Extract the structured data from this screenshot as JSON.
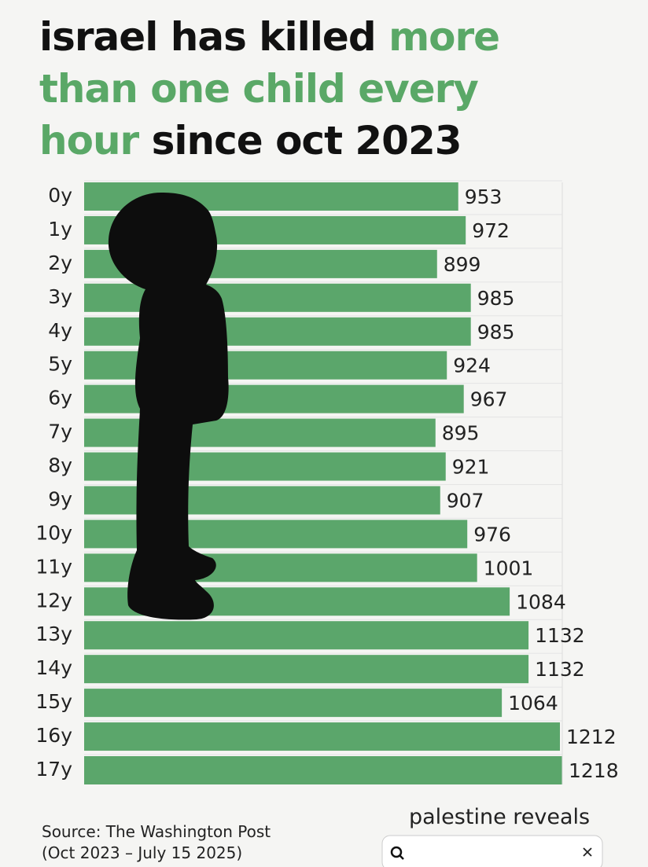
{
  "chart_data": {
    "type": "bar",
    "orientation": "horizontal",
    "title_parts": [
      "israel has killed",
      "more than one child every hour",
      "since oct 2023"
    ],
    "title_colors": [
      "#111111",
      "#5aa867",
      "#111111"
    ],
    "categories": [
      "0y",
      "1y",
      "2y",
      "3y",
      "4y",
      "5y",
      "6y",
      "7y",
      "8y",
      "9y",
      "10y",
      "11y",
      "12y",
      "13y",
      "14y",
      "15y",
      "16y",
      "17y"
    ],
    "values": [
      953,
      972,
      899,
      985,
      985,
      924,
      967,
      895,
      921,
      907,
      976,
      1001,
      1084,
      1132,
      1132,
      1064,
      1212,
      1218
    ],
    "color": "#5ba66b"
  },
  "footer": {
    "source": "Source: The Washington Post",
    "period": "(Oct 2023 – July 15 2025)",
    "brand": "palestine reveals"
  }
}
